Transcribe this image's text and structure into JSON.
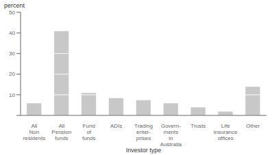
{
  "chart_data": {
    "type": "bar",
    "categories": [
      "All\nNon\nresidents",
      "All\nPension\nfunds",
      "Fund\nof\nfunds",
      "ADIs",
      "Trading\nenter-\nprises",
      "Govern-\nments\nin\nAustralia",
      "Trusts",
      "Life\ninsurance\noffices",
      "Other"
    ],
    "values": [
      [
        6
      ],
      [
        10,
        10,
        10,
        11
      ],
      [
        10,
        1
      ],
      [
        8.5
      ],
      [
        7.5
      ],
      [
        6
      ],
      [
        4
      ],
      [
        2
      ],
      [
        10,
        4
      ]
    ],
    "stacked": true,
    "color": "#c8c8c8",
    "xlabel": "Investor type",
    "ylabel": "percent",
    "ylim": [
      0,
      50
    ],
    "yticks": [
      {
        "value": 0,
        "label": ""
      },
      10,
      20,
      30,
      40,
      50
    ],
    "grid": false
  }
}
